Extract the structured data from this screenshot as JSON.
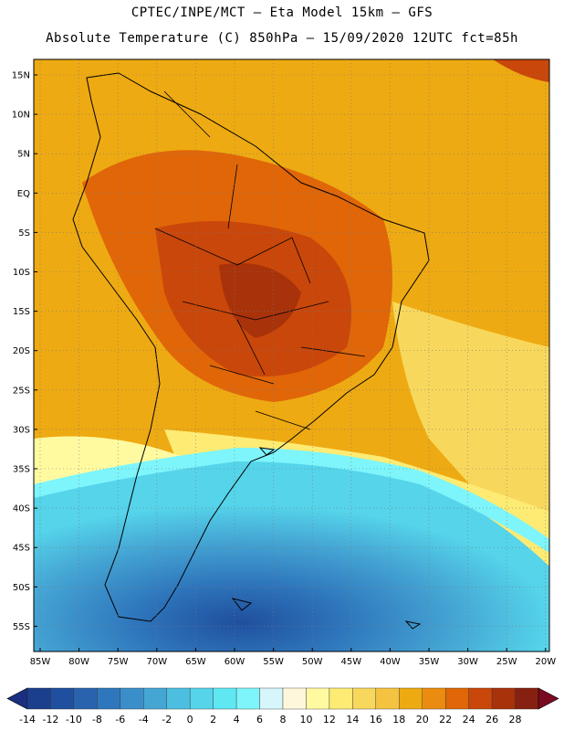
{
  "header": {
    "title_line1": "CPTEC/INPE/MCT –  Eta Model 15km – GFS",
    "title_line2": "Absolute Temperature (C) 850hPa – 15/09/2020 12UTC fct=85h"
  },
  "map": {
    "lat_labels": [
      "15N",
      "10N",
      "5N",
      "EQ",
      "5S",
      "10S",
      "15S",
      "20S",
      "25S",
      "30S",
      "35S",
      "40S",
      "45S",
      "50S",
      "55S"
    ],
    "lon_labels": [
      "85W",
      "80W",
      "75W",
      "70W",
      "65W",
      "60W",
      "55W",
      "50W",
      "45W",
      "40W",
      "35W",
      "30W",
      "25W",
      "20W"
    ]
  },
  "colorbar": {
    "labels": [
      "-14",
      "-12",
      "-10",
      "-8",
      "-6",
      "-4",
      "-2",
      "0",
      "2",
      "4",
      "6",
      "8",
      "10",
      "12",
      "14",
      "16",
      "18",
      "20",
      "22",
      "24",
      "26",
      "28"
    ],
    "colors": [
      "#1b3f8c",
      "#1f4f9e",
      "#2a63ad",
      "#2f77bd",
      "#3a8fca",
      "#45a6d4",
      "#4cbfe0",
      "#55d4ea",
      "#5fe8f2",
      "#7df5fb",
      "#d6f6fb",
      "#fff7dc",
      "#fffaa0",
      "#fdeb74",
      "#f8d85c",
      "#f3c341",
      "#eeaa12",
      "#eb8c10",
      "#e06608",
      "#c9470a",
      "#a8320a",
      "#862010"
    ],
    "under_color": "#1a2f80",
    "over_color": "#7a0a20"
  },
  "colors": {
    "ocean_warm": "#eeaa12",
    "land_hot": "#c9470a",
    "land_hottest": "#a8320a",
    "cold_water": "#4cbfe0",
    "coldest": "#1f4f9e"
  }
}
